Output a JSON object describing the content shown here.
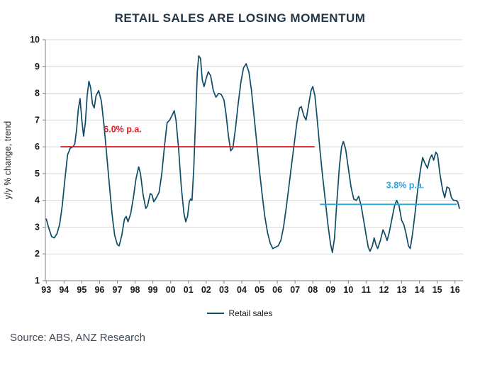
{
  "title": "RETAIL SALES ARE LOSING MOMENTUM",
  "source": "Source: ABS, ANZ Research",
  "legend": {
    "label": "Retail sales"
  },
  "colors": {
    "series": "#0e4c66",
    "red_line": "#e31c23",
    "blue_line": "#2fa3dc",
    "grid": "#d9d9d9",
    "axis": "#7f7f7f",
    "tick_text": "#1a1a1a",
    "title_text": "#253746"
  },
  "chart_data": {
    "type": "line",
    "title": "RETAIL SALES ARE LOSING MOMENTUM",
    "xlabel": "",
    "ylabel": "y/y % change, trend",
    "ylim": [
      1,
      10
    ],
    "xlim": [
      1992.95,
      2016.45
    ],
    "grid": "horizontal",
    "legend_position": "bottom",
    "y_ticks": [
      1,
      2,
      3,
      4,
      5,
      6,
      7,
      8,
      9,
      10
    ],
    "x_ticks": [
      {
        "v": 1993,
        "label": "93"
      },
      {
        "v": 1994,
        "label": "94"
      },
      {
        "v": 1995,
        "label": "95"
      },
      {
        "v": 1996,
        "label": "96"
      },
      {
        "v": 1997,
        "label": "97"
      },
      {
        "v": 1998,
        "label": "98"
      },
      {
        "v": 1999,
        "label": "99"
      },
      {
        "v": 2000,
        "label": "00"
      },
      {
        "v": 2001,
        "label": "01"
      },
      {
        "v": 2002,
        "label": "02"
      },
      {
        "v": 2003,
        "label": "03"
      },
      {
        "v": 2004,
        "label": "04"
      },
      {
        "v": 2005,
        "label": "05"
      },
      {
        "v": 2006,
        "label": "06"
      },
      {
        "v": 2007,
        "label": "07"
      },
      {
        "v": 2008,
        "label": "08"
      },
      {
        "v": 2009,
        "label": "09"
      },
      {
        "v": 2010,
        "label": "10"
      },
      {
        "v": 2011,
        "label": "11"
      },
      {
        "v": 2012,
        "label": "12"
      },
      {
        "v": 2013,
        "label": "13"
      },
      {
        "v": 2014,
        "label": "14"
      },
      {
        "v": 2015,
        "label": "15"
      },
      {
        "v": 2016,
        "label": "16"
      }
    ],
    "series": [
      {
        "name": "Retail sales",
        "color": "#0e4c66",
        "points": [
          [
            1993.0,
            3.3
          ],
          [
            1993.15,
            2.95
          ],
          [
            1993.3,
            2.65
          ],
          [
            1993.45,
            2.6
          ],
          [
            1993.6,
            2.75
          ],
          [
            1993.75,
            3.1
          ],
          [
            1993.9,
            3.8
          ],
          [
            1994.05,
            4.8
          ],
          [
            1994.2,
            5.7
          ],
          [
            1994.35,
            5.95
          ],
          [
            1994.5,
            6.0
          ],
          [
            1994.6,
            6.1
          ],
          [
            1994.7,
            6.6
          ],
          [
            1994.8,
            7.4
          ],
          [
            1994.9,
            7.8
          ],
          [
            1995.0,
            7.0
          ],
          [
            1995.1,
            6.4
          ],
          [
            1995.2,
            6.9
          ],
          [
            1995.3,
            7.9
          ],
          [
            1995.4,
            8.45
          ],
          [
            1995.5,
            8.2
          ],
          [
            1995.6,
            7.6
          ],
          [
            1995.7,
            7.45
          ],
          [
            1995.8,
            7.9
          ],
          [
            1995.95,
            8.1
          ],
          [
            1996.1,
            7.7
          ],
          [
            1996.25,
            6.8
          ],
          [
            1996.4,
            5.7
          ],
          [
            1996.55,
            4.6
          ],
          [
            1996.7,
            3.5
          ],
          [
            1996.85,
            2.7
          ],
          [
            1997.0,
            2.35
          ],
          [
            1997.1,
            2.3
          ],
          [
            1997.25,
            2.7
          ],
          [
            1997.4,
            3.3
          ],
          [
            1997.5,
            3.4
          ],
          [
            1997.6,
            3.2
          ],
          [
            1997.75,
            3.5
          ],
          [
            1997.9,
            4.1
          ],
          [
            1998.05,
            4.8
          ],
          [
            1998.2,
            5.25
          ],
          [
            1998.3,
            5.0
          ],
          [
            1998.45,
            4.2
          ],
          [
            1998.6,
            3.7
          ],
          [
            1998.7,
            3.8
          ],
          [
            1998.85,
            4.25
          ],
          [
            1998.95,
            4.2
          ],
          [
            1999.05,
            3.95
          ],
          [
            1999.2,
            4.1
          ],
          [
            1999.35,
            4.3
          ],
          [
            1999.5,
            5.0
          ],
          [
            1999.65,
            6.0
          ],
          [
            1999.8,
            6.9
          ],
          [
            1999.95,
            7.0
          ],
          [
            2000.1,
            7.2
          ],
          [
            2000.2,
            7.35
          ],
          [
            2000.3,
            7.0
          ],
          [
            2000.45,
            5.9
          ],
          [
            2000.6,
            4.5
          ],
          [
            2000.75,
            3.5
          ],
          [
            2000.85,
            3.2
          ],
          [
            2000.95,
            3.4
          ],
          [
            2001.05,
            3.95
          ],
          [
            2001.12,
            4.05
          ],
          [
            2001.2,
            4.0
          ],
          [
            2001.3,
            5.2
          ],
          [
            2001.4,
            7.0
          ],
          [
            2001.5,
            8.8
          ],
          [
            2001.58,
            9.4
          ],
          [
            2001.68,
            9.3
          ],
          [
            2001.78,
            8.5
          ],
          [
            2001.88,
            8.25
          ],
          [
            2002.0,
            8.55
          ],
          [
            2002.12,
            8.8
          ],
          [
            2002.25,
            8.65
          ],
          [
            2002.4,
            8.1
          ],
          [
            2002.55,
            7.85
          ],
          [
            2002.7,
            8.0
          ],
          [
            2002.85,
            7.95
          ],
          [
            2003.0,
            7.75
          ],
          [
            2003.12,
            7.2
          ],
          [
            2003.25,
            6.4
          ],
          [
            2003.38,
            5.85
          ],
          [
            2003.5,
            5.95
          ],
          [
            2003.65,
            6.7
          ],
          [
            2003.8,
            7.6
          ],
          [
            2003.95,
            8.4
          ],
          [
            2004.1,
            8.95
          ],
          [
            2004.25,
            9.1
          ],
          [
            2004.4,
            8.8
          ],
          [
            2004.55,
            8.1
          ],
          [
            2004.7,
            7.1
          ],
          [
            2004.85,
            6.1
          ],
          [
            2005.0,
            5.1
          ],
          [
            2005.15,
            4.2
          ],
          [
            2005.3,
            3.4
          ],
          [
            2005.45,
            2.8
          ],
          [
            2005.6,
            2.4
          ],
          [
            2005.75,
            2.2
          ],
          [
            2005.9,
            2.25
          ],
          [
            2006.05,
            2.3
          ],
          [
            2006.2,
            2.5
          ],
          [
            2006.35,
            3.0
          ],
          [
            2006.5,
            3.7
          ],
          [
            2006.65,
            4.5
          ],
          [
            2006.8,
            5.3
          ],
          [
            2006.95,
            6.1
          ],
          [
            2007.1,
            6.9
          ],
          [
            2007.25,
            7.45
          ],
          [
            2007.35,
            7.5
          ],
          [
            2007.5,
            7.15
          ],
          [
            2007.62,
            7.0
          ],
          [
            2007.75,
            7.5
          ],
          [
            2007.9,
            8.1
          ],
          [
            2008.0,
            8.25
          ],
          [
            2008.12,
            7.9
          ],
          [
            2008.25,
            7.0
          ],
          [
            2008.4,
            5.9
          ],
          [
            2008.55,
            4.9
          ],
          [
            2008.7,
            4.0
          ],
          [
            2008.85,
            3.1
          ],
          [
            2009.0,
            2.35
          ],
          [
            2009.1,
            2.05
          ],
          [
            2009.22,
            2.6
          ],
          [
            2009.35,
            3.9
          ],
          [
            2009.5,
            5.3
          ],
          [
            2009.62,
            6.0
          ],
          [
            2009.72,
            6.2
          ],
          [
            2009.85,
            5.9
          ],
          [
            2010.0,
            5.2
          ],
          [
            2010.15,
            4.5
          ],
          [
            2010.3,
            4.05
          ],
          [
            2010.45,
            4.0
          ],
          [
            2010.58,
            4.15
          ],
          [
            2010.72,
            3.8
          ],
          [
            2010.85,
            3.3
          ],
          [
            2011.0,
            2.7
          ],
          [
            2011.12,
            2.25
          ],
          [
            2011.22,
            2.1
          ],
          [
            2011.35,
            2.3
          ],
          [
            2011.45,
            2.6
          ],
          [
            2011.55,
            2.35
          ],
          [
            2011.65,
            2.2
          ],
          [
            2011.8,
            2.5
          ],
          [
            2011.95,
            2.9
          ],
          [
            2012.05,
            2.75
          ],
          [
            2012.18,
            2.5
          ],
          [
            2012.3,
            2.8
          ],
          [
            2012.45,
            3.3
          ],
          [
            2012.6,
            3.8
          ],
          [
            2012.72,
            4.0
          ],
          [
            2012.85,
            3.8
          ],
          [
            2013.0,
            3.25
          ],
          [
            2013.12,
            3.1
          ],
          [
            2013.25,
            2.75
          ],
          [
            2013.38,
            2.3
          ],
          [
            2013.48,
            2.2
          ],
          [
            2013.6,
            2.7
          ],
          [
            2013.75,
            3.5
          ],
          [
            2013.9,
            4.4
          ],
          [
            2014.05,
            5.1
          ],
          [
            2014.18,
            5.6
          ],
          [
            2014.3,
            5.4
          ],
          [
            2014.45,
            5.2
          ],
          [
            2014.58,
            5.55
          ],
          [
            2014.7,
            5.7
          ],
          [
            2014.8,
            5.5
          ],
          [
            2014.92,
            5.8
          ],
          [
            2015.02,
            5.7
          ],
          [
            2015.15,
            5.0
          ],
          [
            2015.3,
            4.4
          ],
          [
            2015.42,
            4.1
          ],
          [
            2015.55,
            4.5
          ],
          [
            2015.68,
            4.45
          ],
          [
            2015.8,
            4.1
          ],
          [
            2015.92,
            4.0
          ],
          [
            2016.05,
            4.0
          ],
          [
            2016.15,
            3.95
          ],
          [
            2016.25,
            3.7
          ]
        ]
      }
    ],
    "reference_lines": [
      {
        "label": "6.0% p.a.",
        "value": 6.0,
        "x_start": 1993.8,
        "x_end": 2008.1,
        "color": "#e31c23",
        "label_x": 1997.3,
        "label_y": 6.55
      },
      {
        "label": "3.8% p.a.",
        "value": 3.85,
        "x_start": 2008.4,
        "x_end": 2016.1,
        "color": "#2fa3dc",
        "label_x": 2013.2,
        "label_y": 4.45
      }
    ]
  }
}
